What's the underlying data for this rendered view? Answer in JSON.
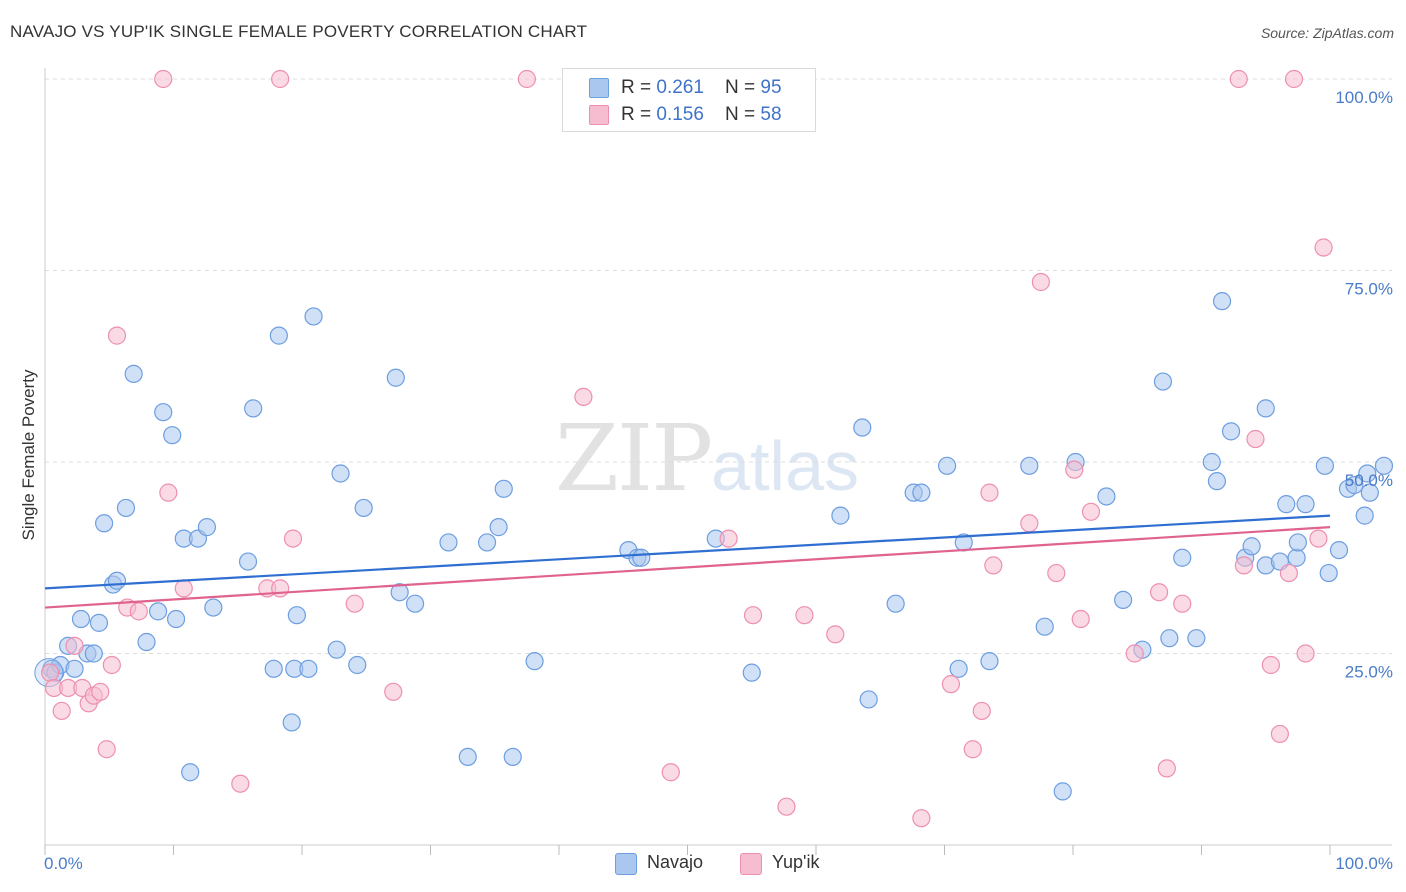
{
  "title": "NAVAJO VS YUP'IK SINGLE FEMALE POVERTY CORRELATION CHART",
  "source": "Source: ZipAtlas.com",
  "watermark": {
    "zip": "ZIP",
    "atlas": "atlas"
  },
  "legend": {
    "navajo": {
      "r_label": "R = ",
      "r": "0.261",
      "n_label": "N = ",
      "n": "95"
    },
    "yupik": {
      "r_label": "R = ",
      "r": "0.156",
      "n_label": "N = ",
      "n": "58"
    }
  },
  "bottom_legend": {
    "navajo": "Navajo",
    "yupik": "Yup'ik"
  },
  "colors": {
    "navajo_fill": "#a9c7ef",
    "navajo_stroke": "#6d9ee0",
    "navajo_line": "#2f6fd1",
    "yupik_fill": "#f6bdd0",
    "yupik_stroke": "#ee8fb0",
    "yupik_line": "#e0628f",
    "grid": "#dcdcdc",
    "axis_text": "#4a7cc7"
  },
  "chart_data": {
    "type": "scatter",
    "xlabel": "",
    "ylabel": "Single Female Poverty",
    "xlim": [
      0,
      100
    ],
    "ylim": [
      0,
      100
    ],
    "x_tick_labels": [
      "0.0%",
      "100.0%"
    ],
    "y_ticks": [
      25,
      50,
      75,
      100
    ],
    "y_tick_labels": [
      "25.0%",
      "50.0%",
      "75.0%",
      "100.0%"
    ],
    "grid": "horizontal-dashed",
    "legend_position": "top-center",
    "series": [
      {
        "name": "Navajo",
        "trend": [
          [
            0,
            33.5
          ],
          [
            100,
            43
          ]
        ],
        "points": [
          [
            0.5,
            23
          ],
          [
            0.8,
            22.5
          ],
          [
            1.2,
            23.5
          ],
          [
            1.8,
            26
          ],
          [
            2.3,
            23
          ],
          [
            2.8,
            29.5
          ],
          [
            3.3,
            25
          ],
          [
            3.8,
            25
          ],
          [
            4.2,
            29
          ],
          [
            4.6,
            42
          ],
          [
            5.3,
            34
          ],
          [
            5.6,
            34.5
          ],
          [
            6.3,
            44
          ],
          [
            6.9,
            61.5
          ],
          [
            7.9,
            26.5
          ],
          [
            8.8,
            30.5
          ],
          [
            9.2,
            56.5
          ],
          [
            9.9,
            53.5
          ],
          [
            10.2,
            29.5
          ],
          [
            10.8,
            40
          ],
          [
            11.3,
            9.5
          ],
          [
            11.9,
            40
          ],
          [
            12.6,
            41.5
          ],
          [
            13.1,
            31
          ],
          [
            15.8,
            37
          ],
          [
            16.2,
            57
          ],
          [
            17.8,
            23
          ],
          [
            18.2,
            66.5
          ],
          [
            19.2,
            16
          ],
          [
            19.4,
            23
          ],
          [
            19.6,
            30
          ],
          [
            20.5,
            23
          ],
          [
            20.9,
            69
          ],
          [
            22.7,
            25.5
          ],
          [
            23,
            48.5
          ],
          [
            24.3,
            23.5
          ],
          [
            24.8,
            44
          ],
          [
            27.3,
            61
          ],
          [
            27.6,
            33
          ],
          [
            28.8,
            31.5
          ],
          [
            31.4,
            39.5
          ],
          [
            32.9,
            11.5
          ],
          [
            34.4,
            39.5
          ],
          [
            35.3,
            41.5
          ],
          [
            35.7,
            46.5
          ],
          [
            36.4,
            11.5
          ],
          [
            38.1,
            24
          ],
          [
            45.4,
            38.5
          ],
          [
            46.1,
            37.5
          ],
          [
            46.4,
            37.5
          ],
          [
            52.2,
            40
          ],
          [
            55,
            22.5
          ],
          [
            61.9,
            43
          ],
          [
            63.6,
            54.5
          ],
          [
            64.1,
            19
          ],
          [
            66.2,
            31.5
          ],
          [
            67.6,
            46
          ],
          [
            68.2,
            46
          ],
          [
            70.2,
            49.5
          ],
          [
            71.1,
            23
          ],
          [
            71.5,
            39.5
          ],
          [
            73.5,
            24
          ],
          [
            76.6,
            49.5
          ],
          [
            77.8,
            28.5
          ],
          [
            79.2,
            7
          ],
          [
            80.2,
            50
          ],
          [
            82.6,
            45.5
          ],
          [
            83.9,
            32
          ],
          [
            85.4,
            25.5
          ],
          [
            87,
            60.5
          ],
          [
            87.5,
            27
          ],
          [
            88.5,
            37.5
          ],
          [
            89.6,
            27
          ],
          [
            90.8,
            50
          ],
          [
            91.2,
            47.5
          ],
          [
            91.6,
            71
          ],
          [
            92.3,
            54
          ],
          [
            93.4,
            37.5
          ],
          [
            93.9,
            39
          ],
          [
            95,
            36.5
          ],
          [
            95,
            57
          ],
          [
            96.1,
            37
          ],
          [
            96.6,
            44.5
          ],
          [
            97.4,
            37.5
          ],
          [
            98.1,
            44.5
          ],
          [
            99.6,
            49.5
          ],
          [
            99.9,
            35.5
          ],
          [
            100.7,
            38.5
          ],
          [
            101.4,
            46.5
          ],
          [
            101.9,
            47
          ],
          [
            102.7,
            43
          ],
          [
            102.9,
            48.5
          ],
          [
            103.1,
            46
          ],
          [
            104.2,
            49.5
          ],
          [
            97.5,
            39.5
          ]
        ]
      },
      {
        "name": "Yup'ik",
        "trend": [
          [
            0,
            31
          ],
          [
            100,
            41.5
          ]
        ],
        "points": [
          [
            0.4,
            22.5
          ],
          [
            0.7,
            20.5
          ],
          [
            1.3,
            17.5
          ],
          [
            1.8,
            20.5
          ],
          [
            2.3,
            26
          ],
          [
            2.9,
            20.5
          ],
          [
            3.4,
            18.5
          ],
          [
            3.8,
            19.5
          ],
          [
            4.3,
            20
          ],
          [
            4.8,
            12.5
          ],
          [
            5.2,
            23.5
          ],
          [
            5.6,
            66.5
          ],
          [
            6.4,
            31
          ],
          [
            7.3,
            30.5
          ],
          [
            9.2,
            100
          ],
          [
            9.6,
            46
          ],
          [
            10.8,
            33.5
          ],
          [
            15.2,
            8
          ],
          [
            17.3,
            33.5
          ],
          [
            18.3,
            33.5
          ],
          [
            18.3,
            100
          ],
          [
            19.3,
            40
          ],
          [
            24.1,
            31.5
          ],
          [
            27.1,
            20
          ],
          [
            37.5,
            100
          ],
          [
            41.9,
            58.5
          ],
          [
            48.7,
            9.5
          ],
          [
            53.2,
            40
          ],
          [
            55.1,
            30
          ],
          [
            57.7,
            5
          ],
          [
            59.1,
            30
          ],
          [
            61.5,
            27.5
          ],
          [
            68.2,
            3.5
          ],
          [
            70.5,
            21
          ],
          [
            72.2,
            12.5
          ],
          [
            72.9,
            17.5
          ],
          [
            73.5,
            46
          ],
          [
            73.8,
            36.5
          ],
          [
            76.6,
            42
          ],
          [
            77.5,
            73.5
          ],
          [
            78.7,
            35.5
          ],
          [
            80.1,
            49
          ],
          [
            80.6,
            29.5
          ],
          [
            81.4,
            43.5
          ],
          [
            84.8,
            25
          ],
          [
            86.7,
            33
          ],
          [
            87.3,
            10
          ],
          [
            88.5,
            31.5
          ],
          [
            92.9,
            100
          ],
          [
            93.3,
            36.5
          ],
          [
            94.2,
            53
          ],
          [
            95.4,
            23.5
          ],
          [
            96.1,
            14.5
          ],
          [
            96.8,
            35.5
          ],
          [
            97.2,
            100
          ],
          [
            98.1,
            25
          ],
          [
            99.1,
            40
          ],
          [
            99.5,
            78
          ]
        ]
      }
    ]
  }
}
